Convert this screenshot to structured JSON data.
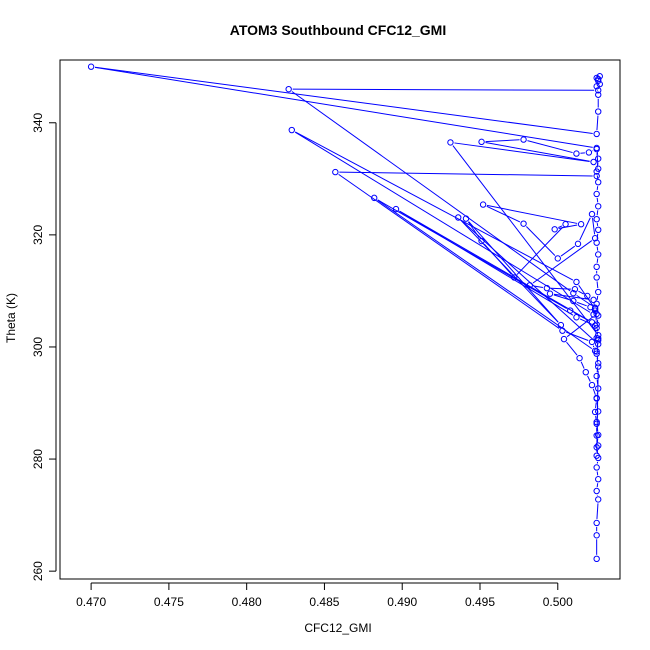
{
  "chart_data": {
    "type": "line",
    "title": "ATOM3 Southbound CFC12_GMI",
    "xlabel": "CFC12_GMI",
    "ylabel": "Theta (K)",
    "xlim": [
      0.468,
      0.504
    ],
    "ylim": [
      258.6,
      351.2
    ],
    "x_ticks": [
      0.47,
      0.475,
      0.48,
      0.485,
      0.49,
      0.495,
      0.5
    ],
    "x_tick_labels": [
      "0.470",
      "0.475",
      "0.480",
      "0.485",
      "0.490",
      "0.495",
      "0.500"
    ],
    "y_ticks": [
      260,
      280,
      300,
      320,
      340
    ],
    "y_tick_labels": [
      "260",
      "280",
      "300",
      "320",
      "340"
    ],
    "grid": false,
    "legend": "none",
    "series_color": "#0000FF",
    "marker": "open-circle",
    "series": [
      {
        "x": [
          0.5025,
          0.5025,
          0.5025,
          0.5026,
          0.5025,
          0.5026,
          0.5025,
          0.5026,
          0.5025,
          0.5026,
          0.5025,
          0.5026,
          0.5025,
          0.5026,
          0.5025,
          0.5026,
          0.5025,
          0.5026,
          0.5025,
          0.5026,
          0.5025,
          0.5026,
          0.5025,
          0.5025,
          0.5026,
          0.5025,
          0.5026,
          0.5025,
          0.5026,
          0.5025,
          0.5026,
          0.5025,
          0.5026,
          0.5025,
          0.47,
          0.5025,
          0.5026,
          0.5026,
          0.5025,
          0.5026,
          0.5025,
          0.5027,
          0.5026,
          0.5027,
          0.5026,
          0.4827,
          0.501,
          0.5024,
          0.5023,
          0.4829,
          0.5012,
          0.5024,
          0.5025,
          0.5026,
          0.4931,
          0.5023,
          0.4951,
          0.4978,
          0.5012,
          0.502,
          0.5025,
          0.5026,
          0.5025,
          0.4857,
          0.5003,
          0.5022,
          0.5024,
          0.4882,
          0.5008,
          0.5022,
          0.4896,
          0.5012,
          0.5024,
          0.5025,
          0.5026,
          0.4936,
          0.5002,
          0.4941,
          0.4951,
          0.4972,
          0.5005,
          0.4998,
          0.5015,
          0.4952,
          0.4978,
          0.5,
          0.5013,
          0.5022,
          0.5024,
          0.4982,
          0.4993,
          0.5011,
          0.5019,
          0.5023,
          0.4995,
          0.501,
          0.5021,
          0.5024,
          0.5025,
          0.5004,
          0.5014,
          0.5018,
          0.5022,
          0.5025,
          0.5024,
          0.5025,
          0.5025,
          0.5026,
          0.5025,
          0.5026,
          0.5025,
          0.5026
        ],
        "y": [
          262.2,
          266.4,
          268.6,
          272.8,
          274.3,
          276.4,
          278.5,
          280.2,
          282.1,
          284.3,
          286.6,
          288.5,
          290.9,
          292.6,
          294.8,
          297.1,
          299.2,
          301.5,
          303.4,
          305.6,
          307.7,
          309.8,
          312.4,
          314.3,
          316.5,
          318.6,
          320.9,
          322.8,
          325.1,
          327.3,
          329.4,
          331.3,
          333.6,
          335.5,
          350.0,
          338.0,
          342.0,
          345.0,
          346.5,
          347.5,
          348.0,
          348.3,
          347.8,
          346.9,
          345.8,
          346.0,
          309.6,
          307.0,
          305.8,
          338.7,
          311.6,
          306.8,
          304.0,
          302.1,
          336.5,
          333.0,
          336.6,
          337.0,
          334.5,
          334.7,
          335.3,
          331.8,
          330.5,
          331.2,
          302.9,
          300.9,
          299.3,
          326.6,
          306.5,
          304.4,
          324.6,
          305.3,
          303.8,
          301.6,
          300.5,
          323.1,
          303.9,
          322.9,
          318.9,
          312.4,
          321.9,
          321.0,
          321.9,
          325.4,
          322.0,
          315.8,
          318.4,
          323.7,
          319.4,
          311.0,
          310.5,
          310.3,
          309.1,
          308.4,
          309.5,
          308.2,
          307.1,
          306.5,
          305.9,
          301.4,
          298.0,
          295.5,
          293.2,
          290.8,
          288.4,
          286.3,
          284.2,
          282.4,
          280.6,
          296.5,
          298.8,
          301.2
        ]
      }
    ]
  }
}
